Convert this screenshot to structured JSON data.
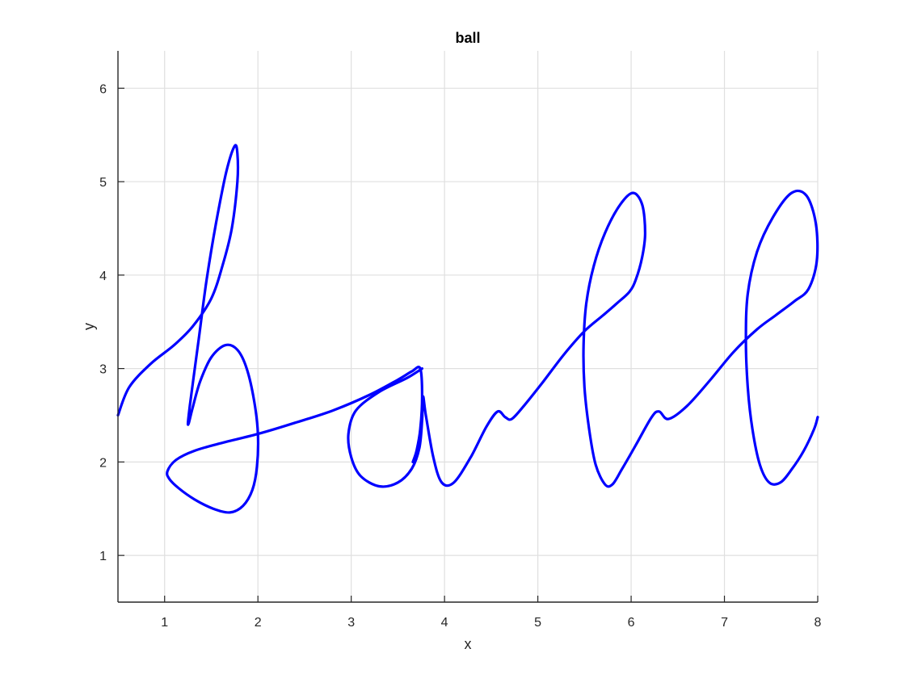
{
  "chart_data": {
    "type": "line",
    "title": "ball",
    "xlabel": "x",
    "ylabel": "y",
    "xlim": [
      0.5,
      8
    ],
    "ylim": [
      0.5,
      6.4
    ],
    "xticks": [
      1,
      2,
      3,
      4,
      5,
      6,
      7,
      8
    ],
    "yticks": [
      1,
      2,
      3,
      4,
      5,
      6
    ],
    "grid": true,
    "line_color": "#0000ff",
    "axis_color": "#262626",
    "grid_color": "#dfdfdf",
    "series": [
      {
        "x": [
          0.5,
          0.62,
          0.85,
          1.1,
          1.3,
          1.5,
          1.62,
          1.72,
          1.78,
          1.78,
          1.75,
          1.66,
          1.55,
          1.45,
          1.37,
          1.31,
          1.27,
          1.25,
          1.26,
          1.3,
          1.38,
          1.5,
          1.65,
          1.78,
          1.88,
          1.96,
          2.0,
          1.99,
          1.94,
          1.84,
          1.7,
          1.52,
          1.32,
          1.15,
          1.05,
          1.03,
          1.12,
          1.32,
          1.6,
          2.0,
          2.4,
          2.8,
          3.2,
          3.5,
          3.65,
          3.74,
          3.76,
          3.74,
          3.7,
          3.66
        ],
        "y": [
          2.5,
          2.8,
          3.05,
          3.25,
          3.45,
          3.75,
          4.1,
          4.5,
          5.0,
          5.3,
          5.38,
          5.1,
          4.55,
          3.95,
          3.35,
          2.9,
          2.6,
          2.42,
          2.42,
          2.58,
          2.86,
          3.12,
          3.25,
          3.2,
          3.0,
          2.65,
          2.3,
          1.95,
          1.7,
          1.53,
          1.46,
          1.5,
          1.6,
          1.72,
          1.82,
          1.9,
          2.02,
          2.12,
          2.2,
          2.3,
          2.42,
          2.55,
          2.72,
          2.88,
          2.97,
          3.0,
          2.7,
          2.35,
          2.12,
          2.0
        ]
      },
      {
        "x": [
          3.76,
          3.6,
          3.3,
          3.05,
          2.97,
          3.0,
          3.1,
          3.3,
          3.5,
          3.65,
          3.73,
          3.76,
          3.77,
          3.8,
          3.88,
          3.97,
          4.1,
          4.28,
          4.45,
          4.57,
          4.65,
          4.72,
          4.85,
          5.05,
          5.28,
          5.5,
          5.7,
          5.85,
          5.98,
          6.05,
          6.12,
          6.15,
          6.12,
          6.02,
          5.88,
          5.72,
          5.6,
          5.52,
          5.49,
          5.5,
          5.55,
          5.62,
          5.72,
          5.8,
          5.9,
          6.05,
          6.22,
          6.3,
          6.4,
          6.6,
          6.85,
          7.1,
          7.35,
          7.55,
          7.75,
          7.9,
          7.99,
          7.98,
          7.88,
          7.72,
          7.52,
          7.35,
          7.25,
          7.23,
          7.25,
          7.3,
          7.38,
          7.48,
          7.6,
          7.72,
          7.85,
          7.96,
          8.0
        ],
        "y": [
          3.0,
          2.9,
          2.75,
          2.55,
          2.3,
          2.05,
          1.85,
          1.74,
          1.78,
          1.93,
          2.15,
          2.45,
          2.7,
          2.5,
          2.05,
          1.78,
          1.78,
          2.05,
          2.38,
          2.54,
          2.48,
          2.46,
          2.6,
          2.85,
          3.15,
          3.4,
          3.57,
          3.7,
          3.82,
          3.95,
          4.2,
          4.45,
          4.75,
          4.88,
          4.75,
          4.45,
          4.1,
          3.7,
          3.25,
          2.8,
          2.35,
          1.97,
          1.76,
          1.76,
          1.92,
          2.18,
          2.48,
          2.54,
          2.46,
          2.6,
          2.88,
          3.18,
          3.42,
          3.57,
          3.72,
          3.85,
          4.15,
          4.55,
          4.85,
          4.88,
          4.62,
          4.25,
          3.8,
          3.3,
          2.8,
          2.35,
          1.97,
          1.78,
          1.78,
          1.92,
          2.12,
          2.35,
          2.48
        ]
      }
    ]
  }
}
